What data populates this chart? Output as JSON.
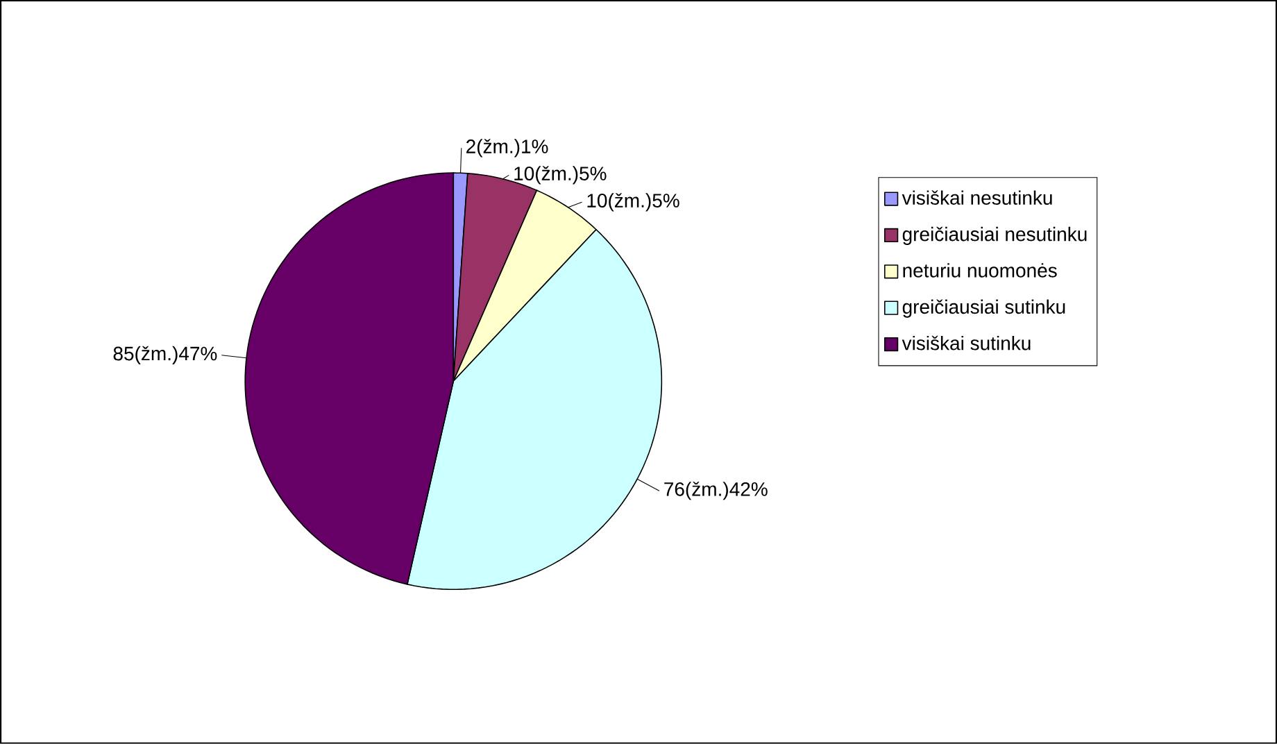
{
  "chart_data": {
    "type": "pie",
    "categories": [
      "visiškai nesutinku",
      "greičiausiai nesutinku",
      "neturiu nuomonės",
      "greičiausiai sutinku",
      "visiškai sutinku"
    ],
    "values": [
      2,
      10,
      10,
      76,
      85
    ],
    "colors": [
      "#9999ff",
      "#993366",
      "#ffffcc",
      "#ccffff",
      "#660066"
    ],
    "value_labels": [
      "2(žm.)1%",
      "10(žm.)5%",
      "10(žm.)5%",
      "76(žm.)42%",
      "85(žm.)47%"
    ],
    "legend": "right"
  }
}
